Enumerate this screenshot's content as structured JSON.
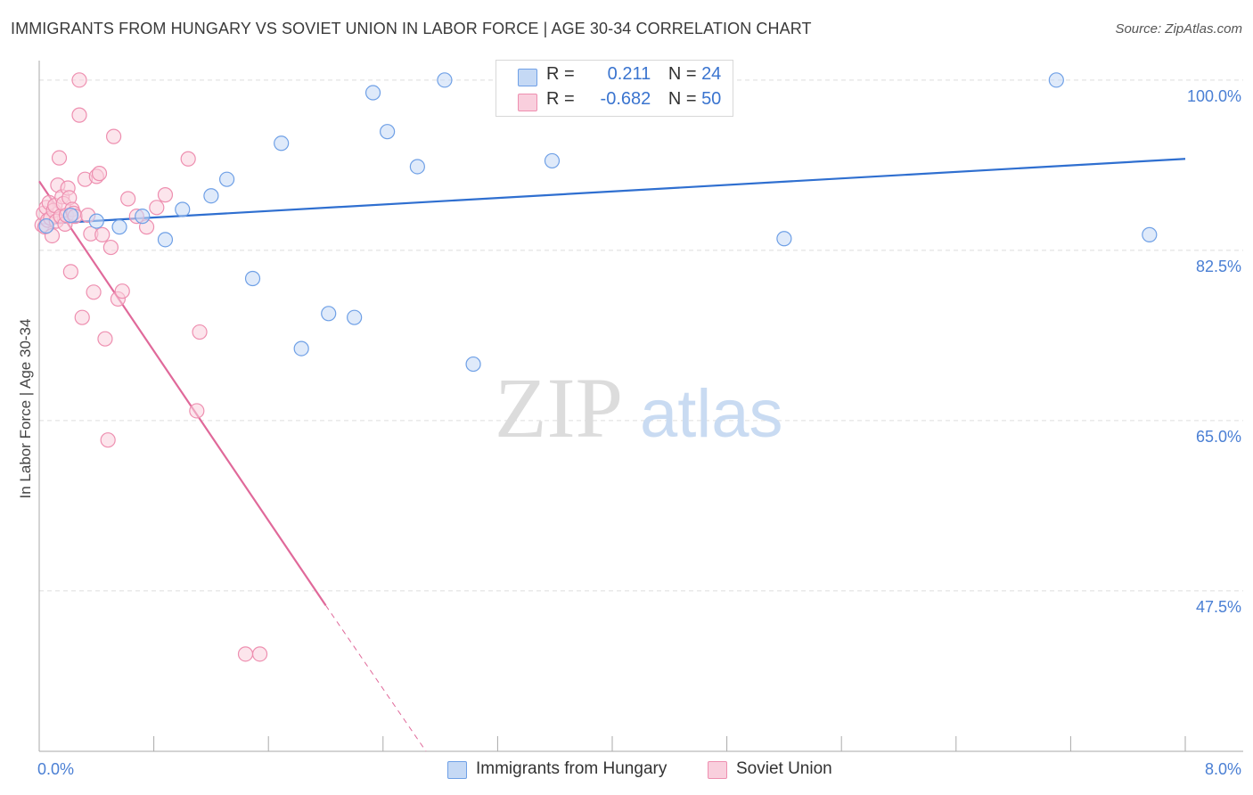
{
  "header": {
    "title": "IMMIGRANTS FROM HUNGARY VS SOVIET UNION IN LABOR FORCE | AGE 30-34 CORRELATION CHART",
    "source": "Source: ZipAtlas.com"
  },
  "watermark": {
    "part1": "ZIP",
    "part2": "atlas"
  },
  "legend_top": {
    "rows": [
      {
        "r_label": "R =",
        "r_value": "0.211",
        "n_label": "N =",
        "n_value": "24"
      },
      {
        "r_label": "R =",
        "r_value": "-0.682",
        "n_label": "N =",
        "n_value": "50"
      }
    ]
  },
  "legend_bottom": {
    "items": [
      {
        "label": "Immigrants from Hungary"
      },
      {
        "label": "Soviet Union"
      }
    ]
  },
  "chart_data": {
    "type": "scatter",
    "title": "IMMIGRANTS FROM HUNGARY VS SOVIET UNION IN LABOR FORCE | AGE 30-34 CORRELATION CHART",
    "ylabel": "In Labor Force | Age 30-34",
    "xlabel": "",
    "xlim": [
      0,
      8
    ],
    "ylim": [
      31,
      102
    ],
    "x_tick_labels": [
      "0.0%",
      "8.0%"
    ],
    "y_ticks": [
      47.5,
      65.0,
      82.5,
      100.0
    ],
    "y_tick_labels": [
      "47.5%",
      "65.0%",
      "82.5%",
      "100.0%"
    ],
    "grid": true,
    "colors": {
      "hungary": "#6fa0e6",
      "hungary_fill": "#c5d9f5",
      "hungary_line": "#2f6fd0",
      "soviet": "#ee8fb0",
      "soviet_fill": "#f9cfdd",
      "soviet_line": "#e0699a",
      "accent": "#4a7fd4"
    },
    "series": [
      {
        "name": "Immigrants from Hungary",
        "points": [
          [
            0.05,
            85.0
          ],
          [
            0.22,
            86.1
          ],
          [
            0.4,
            85.5
          ],
          [
            0.56,
            84.9
          ],
          [
            0.72,
            86.0
          ],
          [
            0.88,
            83.6
          ],
          [
            1.0,
            86.7
          ],
          [
            1.2,
            88.1
          ],
          [
            1.31,
            89.8
          ],
          [
            1.49,
            79.6
          ],
          [
            1.69,
            93.5
          ],
          [
            1.83,
            72.4
          ],
          [
            2.02,
            76.0
          ],
          [
            2.2,
            75.6
          ],
          [
            2.33,
            98.7
          ],
          [
            2.43,
            94.7
          ],
          [
            2.64,
            91.1
          ],
          [
            2.83,
            100.0
          ],
          [
            3.03,
            70.8
          ],
          [
            3.24,
            100.0
          ],
          [
            3.58,
            91.7
          ],
          [
            5.2,
            83.7
          ],
          [
            7.1,
            100.0
          ],
          [
            7.75,
            84.1
          ]
        ],
        "trend": {
          "x": [
            0.0,
            8.0
          ],
          "y": [
            85.2,
            91.9
          ]
        }
      },
      {
        "name": "Soviet Union",
        "points": [
          [
            0.02,
            85.1
          ],
          [
            0.03,
            86.3
          ],
          [
            0.04,
            84.9
          ],
          [
            0.05,
            86.9
          ],
          [
            0.06,
            85.6
          ],
          [
            0.07,
            87.4
          ],
          [
            0.08,
            85.8
          ],
          [
            0.09,
            84.0
          ],
          [
            0.1,
            86.6
          ],
          [
            0.11,
            87.1
          ],
          [
            0.12,
            85.5
          ],
          [
            0.13,
            89.2
          ],
          [
            0.14,
            92.0
          ],
          [
            0.15,
            86.0
          ],
          [
            0.16,
            88.0
          ],
          [
            0.17,
            87.3
          ],
          [
            0.18,
            85.2
          ],
          [
            0.19,
            86.1
          ],
          [
            0.2,
            88.9
          ],
          [
            0.21,
            87.9
          ],
          [
            0.22,
            80.3
          ],
          [
            0.23,
            86.7
          ],
          [
            0.24,
            86.3
          ],
          [
            0.25,
            86.0
          ],
          [
            0.28,
            96.4
          ],
          [
            0.3,
            75.6
          ],
          [
            0.32,
            89.8
          ],
          [
            0.34,
            86.1
          ],
          [
            0.36,
            84.2
          ],
          [
            0.38,
            78.2
          ],
          [
            0.4,
            90.1
          ],
          [
            0.42,
            90.4
          ],
          [
            0.44,
            84.1
          ],
          [
            0.46,
            73.4
          ],
          [
            0.48,
            63.0
          ],
          [
            0.5,
            82.8
          ],
          [
            0.52,
            94.2
          ],
          [
            0.55,
            77.5
          ],
          [
            0.58,
            78.3
          ],
          [
            0.62,
            87.8
          ],
          [
            0.68,
            86.0
          ],
          [
            0.75,
            84.9
          ],
          [
            0.82,
            86.9
          ],
          [
            0.88,
            88.2
          ],
          [
            0.28,
            100.0
          ],
          [
            1.04,
            91.9
          ],
          [
            1.1,
            66.0
          ],
          [
            1.12,
            74.1
          ],
          [
            1.44,
            41.0
          ],
          [
            1.54,
            41.0
          ]
        ],
        "trend": {
          "x": [
            0.0,
            2.0
          ],
          "y": [
            89.6,
            46.0
          ]
        },
        "trend_dashed": {
          "x": [
            2.0,
            2.7
          ],
          "y": [
            46.0,
            31.0
          ]
        }
      }
    ]
  }
}
